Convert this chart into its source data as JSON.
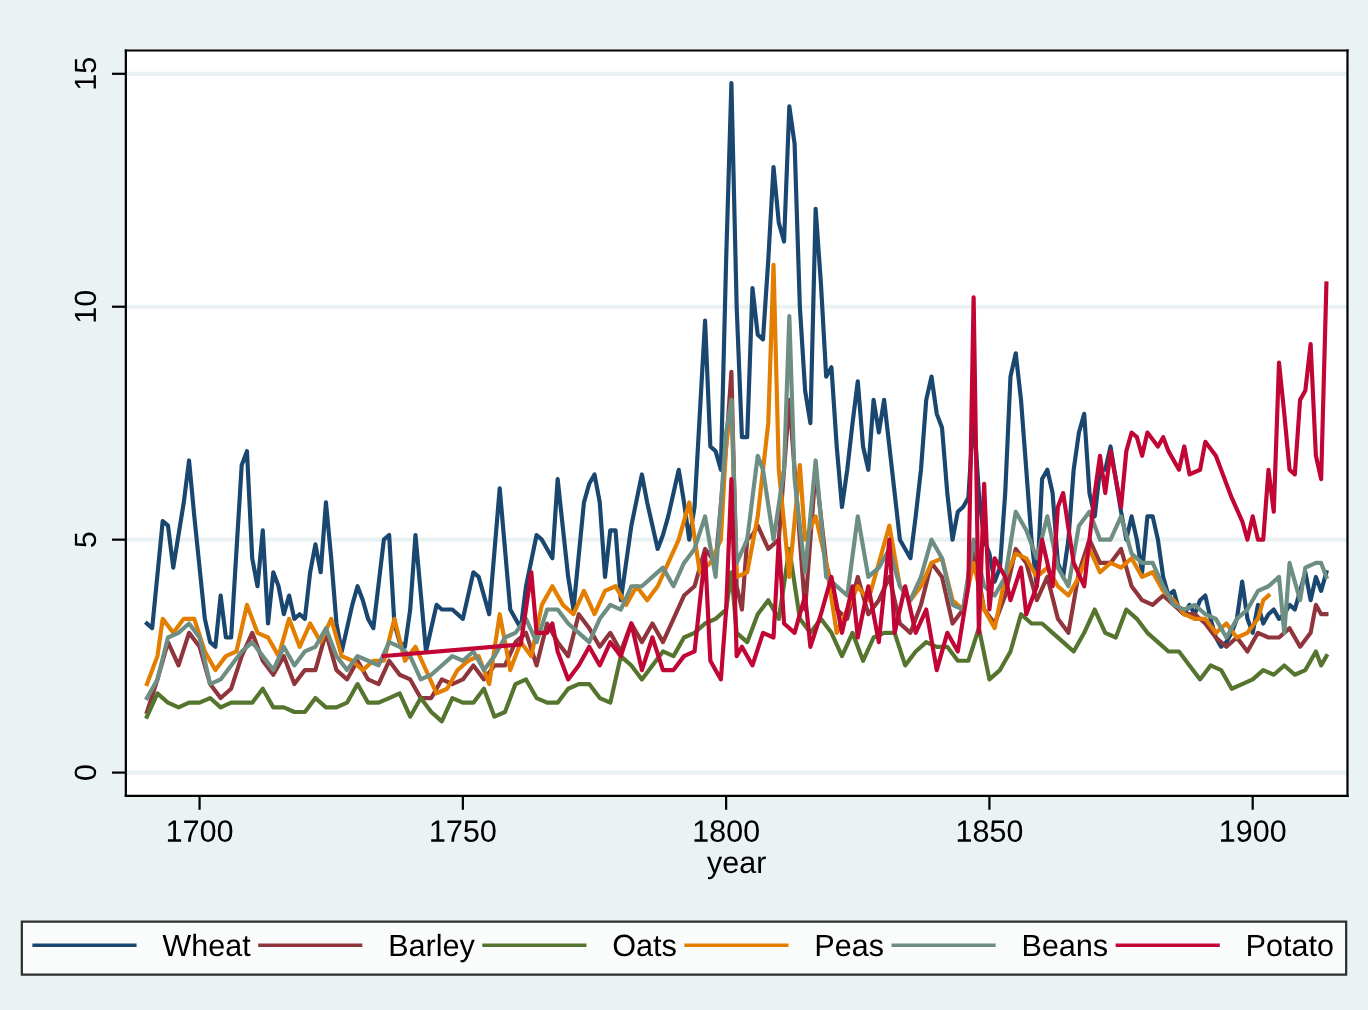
{
  "chart_data": {
    "type": "line",
    "xlabel": "year",
    "xlim": [
      1686,
      1918
    ],
    "xticks": [
      1700,
      1750,
      1800,
      1850,
      1900
    ],
    "ylim": [
      -0.5,
      15.5
    ],
    "yticks": [
      0,
      5,
      10,
      15
    ],
    "grid": "y",
    "legend": "bottom",
    "marker": "none",
    "line_style": "solid",
    "series": [
      {
        "name": "Wheat",
        "color": "#1a476f",
        "x": [
          1690,
          1691,
          1693,
          1694,
          1695,
          1697,
          1698,
          1699,
          1701,
          1702,
          1703,
          1704,
          1705,
          1706,
          1708,
          1709,
          1710,
          1711,
          1712,
          1713,
          1714,
          1715,
          1716,
          1717,
          1718,
          1719,
          1720,
          1721,
          1722,
          1723,
          1724,
          1725,
          1726,
          1727,
          1729,
          1730,
          1731,
          1732,
          1733,
          1735,
          1736,
          1737,
          1738,
          1739,
          1740,
          1741,
          1743,
          1745,
          1746,
          1748,
          1750,
          1752,
          1753,
          1755,
          1757,
          1759,
          1761,
          1762,
          1764,
          1765,
          1767,
          1768,
          1770,
          1771,
          1773,
          1774,
          1775,
          1776,
          1777,
          1778,
          1779,
          1780,
          1782,
          1784,
          1785,
          1787,
          1788,
          1789,
          1791,
          1792,
          1793,
          1794,
          1796,
          1797,
          1798,
          1799,
          1800,
          1801,
          1802,
          1803,
          1804,
          1805,
          1806,
          1807,
          1808,
          1809,
          1810,
          1811,
          1812,
          1813,
          1814,
          1815,
          1816,
          1817,
          1818,
          1819,
          1820,
          1821,
          1822,
          1823,
          1824,
          1825,
          1826,
          1827,
          1828,
          1829,
          1830,
          1831,
          1832,
          1833,
          1835,
          1836,
          1837,
          1838,
          1839,
          1840,
          1841,
          1842,
          1843,
          1844,
          1845,
          1846,
          1847,
          1848,
          1849,
          1850,
          1851,
          1852,
          1853,
          1854,
          1855,
          1856,
          1857,
          1858,
          1859,
          1860,
          1861,
          1862,
          1863,
          1864,
          1865,
          1866,
          1867,
          1868,
          1869,
          1870,
          1871,
          1872,
          1873,
          1874,
          1875,
          1876,
          1877,
          1878,
          1879,
          1880,
          1881,
          1882,
          1883,
          1884,
          1885,
          1886,
          1887,
          1888,
          1889,
          1890,
          1891,
          1892,
          1893,
          1894,
          1895,
          1896,
          1897,
          1898,
          1899,
          1900,
          1901,
          1902,
          1903,
          1904,
          1905,
          1906,
          1907,
          1908,
          1909,
          1910,
          1911,
          1912,
          1913,
          1914
        ],
        "values": [
          3.2,
          3.1,
          5.4,
          5.3,
          4.4,
          5.8,
          6.7,
          5.5,
          3.3,
          2.8,
          2.7,
          3.8,
          2.9,
          2.9,
          6.6,
          6.9,
          4.6,
          4.0,
          5.2,
          3.2,
          4.3,
          4.0,
          3.4,
          3.8,
          3.3,
          3.4,
          3.3,
          4.3,
          4.9,
          4.3,
          5.8,
          4.6,
          3.2,
          2.6,
          3.6,
          4.0,
          3.7,
          3.3,
          3.1,
          5.0,
          5.1,
          3.2,
          2.8,
          2.7,
          3.5,
          5.1,
          2.6,
          3.6,
          3.5,
          3.5,
          3.3,
          4.3,
          4.2,
          3.4,
          6.1,
          3.5,
          3.1,
          4.0,
          5.1,
          5.0,
          4.6,
          6.3,
          4.2,
          3.5,
          5.8,
          6.2,
          6.4,
          5.8,
          4.2,
          5.2,
          5.2,
          3.7,
          5.3,
          6.4,
          5.8,
          4.8,
          5.1,
          5.5,
          6.5,
          5.8,
          5.0,
          5.7,
          9.7,
          7.0,
          6.9,
          6.5,
          11.0,
          14.8,
          10.0,
          7.2,
          7.2,
          10.4,
          9.4,
          9.3,
          11.0,
          13.0,
          11.8,
          11.4,
          14.3,
          13.5,
          10.0,
          8.2,
          7.5,
          12.1,
          10.5,
          8.5,
          8.7,
          7.0,
          5.7,
          6.5,
          7.5,
          8.4,
          7.0,
          6.5,
          8.0,
          7.3,
          8.0,
          7.0,
          6.0,
          5.0,
          4.6,
          5.5,
          6.5,
          8.0,
          8.5,
          7.7,
          7.4,
          6.0,
          5.0,
          5.6,
          5.7,
          5.9,
          7.7,
          6.0,
          5.0,
          4.7,
          4.1,
          4.4,
          6.0,
          8.5,
          9.0,
          8.0,
          6.5,
          5.0,
          4.0,
          6.3,
          6.5,
          6.0,
          4.5,
          4.2,
          5.0,
          6.5,
          7.3,
          7.7,
          6.0,
          5.5,
          6.5,
          6.5,
          7.0,
          6.3,
          5.6,
          5.0,
          5.5,
          5.0,
          4.3,
          5.5,
          5.5,
          5.0,
          4.2,
          3.8,
          3.9,
          3.5,
          3.4,
          3.6,
          3.4,
          3.7,
          3.8,
          3.3,
          2.9,
          2.7,
          2.8,
          3.0,
          3.3,
          4.1,
          3.3,
          3.0,
          3.6,
          3.2,
          3.4,
          3.5,
          3.3,
          3.4,
          3.6,
          3.5,
          3.9,
          4.3,
          3.7,
          4.2,
          3.9,
          4.3
        ]
      },
      {
        "name": "Barley",
        "color": "#90353b",
        "x": [
          1690,
          1692,
          1694,
          1696,
          1698,
          1700,
          1702,
          1704,
          1706,
          1708,
          1710,
          1712,
          1714,
          1716,
          1718,
          1720,
          1722,
          1724,
          1726,
          1728,
          1730,
          1732,
          1734,
          1736,
          1738,
          1740,
          1742,
          1744,
          1746,
          1748,
          1750,
          1752,
          1754,
          1756,
          1758,
          1760,
          1762,
          1764,
          1766,
          1768,
          1770,
          1772,
          1774,
          1776,
          1778,
          1780,
          1782,
          1784,
          1786,
          1788,
          1790,
          1792,
          1794,
          1796,
          1798,
          1800,
          1801,
          1802,
          1803,
          1804,
          1805,
          1806,
          1808,
          1810,
          1812,
          1813,
          1815,
          1817,
          1819,
          1821,
          1823,
          1825,
          1827,
          1829,
          1831,
          1833,
          1835,
          1837,
          1839,
          1841,
          1843,
          1845,
          1847,
          1849,
          1851,
          1853,
          1855,
          1857,
          1859,
          1861,
          1863,
          1865,
          1867,
          1869,
          1871,
          1873,
          1875,
          1877,
          1879,
          1881,
          1883,
          1885,
          1887,
          1889,
          1891,
          1893,
          1895,
          1897,
          1899,
          1901,
          1903,
          1905,
          1907,
          1909,
          1911,
          1912,
          1913,
          1914
        ],
        "values": [
          1.3,
          2.0,
          2.8,
          2.3,
          3.0,
          2.7,
          1.9,
          1.6,
          1.8,
          2.5,
          3.0,
          2.4,
          2.1,
          2.5,
          1.9,
          2.2,
          2.2,
          3.0,
          2.2,
          2.0,
          2.4,
          2.0,
          1.9,
          2.4,
          2.1,
          2.0,
          1.6,
          1.6,
          2.0,
          1.9,
          2.0,
          2.3,
          2.0,
          2.3,
          2.3,
          2.8,
          3.0,
          2.3,
          3.2,
          2.8,
          2.5,
          3.4,
          3.1,
          2.7,
          3.0,
          2.6,
          3.2,
          2.8,
          3.2,
          2.8,
          3.3,
          3.8,
          4.0,
          4.8,
          4.5,
          7.0,
          8.6,
          4.0,
          3.5,
          5.0,
          5.1,
          5.3,
          4.8,
          5.0,
          8.0,
          6.5,
          3.5,
          6.5,
          4.5,
          3.5,
          3.3,
          4.2,
          3.4,
          3.7,
          4.2,
          3.2,
          3.0,
          3.6,
          4.5,
          4.2,
          3.2,
          3.5,
          4.8,
          3.5,
          3.2,
          3.8,
          4.8,
          4.5,
          3.7,
          4.2,
          3.3,
          3.0,
          4.3,
          5.0,
          4.5,
          4.5,
          4.8,
          4.0,
          3.7,
          3.6,
          3.8,
          3.6,
          3.4,
          3.4,
          3.2,
          2.9,
          2.7,
          2.9,
          2.6,
          3.0,
          2.9,
          2.9,
          3.1,
          2.7,
          3.0,
          3.6,
          3.4,
          3.4
        ]
      },
      {
        "name": "Oats",
        "color": "#55752f",
        "x": [
          1690,
          1692,
          1694,
          1696,
          1698,
          1700,
          1702,
          1704,
          1706,
          1708,
          1710,
          1712,
          1714,
          1716,
          1718,
          1720,
          1722,
          1724,
          1726,
          1728,
          1730,
          1732,
          1734,
          1736,
          1738,
          1740,
          1742,
          1744,
          1746,
          1748,
          1750,
          1752,
          1754,
          1756,
          1758,
          1760,
          1762,
          1764,
          1766,
          1768,
          1770,
          1772,
          1774,
          1776,
          1778,
          1780,
          1782,
          1784,
          1786,
          1788,
          1790,
          1792,
          1794,
          1796,
          1798,
          1800,
          1801,
          1802,
          1804,
          1806,
          1808,
          1810,
          1812,
          1814,
          1816,
          1818,
          1820,
          1822,
          1824,
          1826,
          1828,
          1830,
          1832,
          1834,
          1836,
          1838,
          1840,
          1842,
          1844,
          1846,
          1848,
          1850,
          1852,
          1854,
          1856,
          1858,
          1860,
          1862,
          1864,
          1866,
          1868,
          1870,
          1872,
          1874,
          1876,
          1878,
          1880,
          1882,
          1884,
          1886,
          1888,
          1890,
          1892,
          1894,
          1896,
          1898,
          1900,
          1902,
          1904,
          1906,
          1908,
          1910,
          1912,
          1913,
          1914
        ],
        "values": [
          1.2,
          1.7,
          1.5,
          1.4,
          1.5,
          1.5,
          1.6,
          1.4,
          1.5,
          1.5,
          1.5,
          1.8,
          1.4,
          1.4,
          1.3,
          1.3,
          1.6,
          1.4,
          1.4,
          1.5,
          1.9,
          1.5,
          1.5,
          1.6,
          1.7,
          1.2,
          1.6,
          1.3,
          1.1,
          1.6,
          1.5,
          1.5,
          1.8,
          1.2,
          1.3,
          1.9,
          2.0,
          1.6,
          1.5,
          1.5,
          1.8,
          1.9,
          1.9,
          1.6,
          1.5,
          2.5,
          2.3,
          2.0,
          2.3,
          2.6,
          2.5,
          2.9,
          3.0,
          3.2,
          3.3,
          3.5,
          4.3,
          3.0,
          2.8,
          3.4,
          3.7,
          3.3,
          4.8,
          3.3,
          3.0,
          3.3,
          3.0,
          2.5,
          3.0,
          2.4,
          2.9,
          3.0,
          3.0,
          2.3,
          2.6,
          2.8,
          2.7,
          2.7,
          2.4,
          2.4,
          3.1,
          2.0,
          2.2,
          2.6,
          3.4,
          3.2,
          3.2,
          3.0,
          2.8,
          2.6,
          3.0,
          3.5,
          3.0,
          2.9,
          3.5,
          3.3,
          3.0,
          2.8,
          2.6,
          2.6,
          2.3,
          2.0,
          2.3,
          2.2,
          1.8,
          1.9,
          2.0,
          2.2,
          2.1,
          2.3,
          2.1,
          2.2,
          2.6,
          2.3,
          2.5
        ]
      },
      {
        "name": "Peas",
        "color": "#e37e00",
        "x": [
          1690,
          1692,
          1693,
          1695,
          1697,
          1699,
          1701,
          1703,
          1705,
          1707,
          1709,
          1711,
          1713,
          1715,
          1717,
          1719,
          1721,
          1723,
          1725,
          1727,
          1729,
          1731,
          1733,
          1735,
          1737,
          1739,
          1741,
          1743,
          1745,
          1747,
          1749,
          1751,
          1753,
          1755,
          1757,
          1759,
          1761,
          1763,
          1765,
          1767,
          1769,
          1771,
          1773,
          1775,
          1777,
          1779,
          1781,
          1783,
          1785,
          1787,
          1789,
          1791,
          1793,
          1795,
          1797,
          1799,
          1800,
          1801,
          1802,
          1804,
          1806,
          1808,
          1809,
          1810,
          1812,
          1814,
          1815,
          1817,
          1819,
          1821,
          1823,
          1825,
          1827,
          1829,
          1831,
          1833,
          1835,
          1837,
          1839,
          1841,
          1843,
          1845,
          1847,
          1849,
          1851,
          1853,
          1855,
          1857,
          1859,
          1861,
          1863,
          1865,
          1867,
          1869,
          1871,
          1873,
          1875,
          1877,
          1879,
          1881,
          1883,
          1885,
          1887,
          1889,
          1891,
          1893,
          1895,
          1897,
          1899,
          1901,
          1902,
          1903
        ],
        "values": [
          1.9,
          2.5,
          3.3,
          3.0,
          3.3,
          3.3,
          2.6,
          2.2,
          2.5,
          2.6,
          3.6,
          3.0,
          2.9,
          2.5,
          3.3,
          2.7,
          3.2,
          2.8,
          3.3,
          2.5,
          2.4,
          2.2,
          2.4,
          2.4,
          3.3,
          2.4,
          2.7,
          2.2,
          1.7,
          1.8,
          2.2,
          2.4,
          2.5,
          1.9,
          3.4,
          2.2,
          2.8,
          2.5,
          3.6,
          4.0,
          3.6,
          3.4,
          3.9,
          3.4,
          3.9,
          4.0,
          3.6,
          4.0,
          3.7,
          4.0,
          4.5,
          5.0,
          5.8,
          4.3,
          4.5,
          5.0,
          7.0,
          8.0,
          4.2,
          4.3,
          5.5,
          7.5,
          10.9,
          6.5,
          4.2,
          6.6,
          5.0,
          5.5,
          4.5,
          3.0,
          3.5,
          4.0,
          3.7,
          4.5,
          5.3,
          4.0,
          3.7,
          4.0,
          4.5,
          4.6,
          3.7,
          3.5,
          4.5,
          3.5,
          3.1,
          4.2,
          4.7,
          4.6,
          4.2,
          4.4,
          4.0,
          3.8,
          4.2,
          4.8,
          4.3,
          4.5,
          4.4,
          4.6,
          4.2,
          4.3,
          3.9,
          3.7,
          3.4,
          3.3,
          3.3,
          3.0,
          3.2,
          2.9,
          3.0,
          3.3,
          3.7,
          3.8
        ]
      },
      {
        "name": "Beans",
        "color": "#6e8e84",
        "x": [
          1690,
          1692,
          1694,
          1696,
          1698,
          1700,
          1702,
          1704,
          1706,
          1708,
          1710,
          1712,
          1714,
          1716,
          1718,
          1720,
          1722,
          1724,
          1726,
          1728,
          1730,
          1732,
          1734,
          1736,
          1738,
          1740,
          1742,
          1744,
          1746,
          1748,
          1750,
          1752,
          1754,
          1756,
          1758,
          1760,
          1762,
          1764,
          1766,
          1768,
          1770,
          1772,
          1774,
          1776,
          1778,
          1780,
          1782,
          1784,
          1786,
          1788,
          1790,
          1792,
          1794,
          1796,
          1798,
          1800,
          1801,
          1802,
          1804,
          1806,
          1807,
          1809,
          1811,
          1812,
          1813,
          1815,
          1817,
          1819,
          1821,
          1823,
          1825,
          1827,
          1829,
          1831,
          1833,
          1835,
          1837,
          1839,
          1841,
          1843,
          1845,
          1847,
          1849,
          1851,
          1853,
          1855,
          1857,
          1859,
          1861,
          1863,
          1865,
          1867,
          1869,
          1871,
          1873,
          1875,
          1877,
          1879,
          1881,
          1883,
          1885,
          1887,
          1889,
          1891,
          1893,
          1895,
          1897,
          1899,
          1901,
          1903,
          1905,
          1906,
          1907,
          1909,
          1910,
          1912,
          1913,
          1914
        ],
        "values": [
          1.6,
          2.0,
          2.9,
          3.0,
          3.2,
          2.9,
          1.9,
          2.0,
          2.3,
          2.6,
          2.8,
          2.5,
          2.2,
          2.7,
          2.3,
          2.6,
          2.7,
          3.1,
          2.5,
          2.2,
          2.5,
          2.4,
          2.3,
          2.8,
          2.7,
          2.5,
          2.0,
          2.1,
          2.3,
          2.5,
          2.4,
          2.6,
          2.2,
          2.5,
          2.9,
          3.0,
          3.3,
          2.8,
          3.5,
          3.5,
          3.2,
          3.0,
          2.8,
          3.3,
          3.6,
          3.5,
          4.0,
          4.0,
          4.2,
          4.4,
          4.0,
          4.5,
          4.8,
          5.5,
          4.2,
          7.3,
          8.0,
          4.5,
          5.0,
          6.8,
          6.5,
          5.0,
          6.5,
          9.8,
          6.3,
          4.3,
          6.7,
          4.2,
          4.0,
          3.8,
          5.5,
          4.2,
          4.4,
          4.8,
          4.0,
          3.7,
          4.2,
          5.0,
          4.6,
          3.6,
          3.5,
          5.0,
          4.0,
          3.8,
          4.2,
          5.6,
          5.2,
          4.6,
          5.5,
          4.4,
          4.0,
          5.3,
          5.6,
          5.0,
          5.0,
          5.5,
          4.7,
          4.5,
          4.5,
          4.0,
          3.6,
          3.5,
          3.6,
          3.4,
          3.3,
          2.9,
          3.3,
          3.5,
          3.9,
          4.0,
          4.2,
          3.0,
          4.5,
          3.7,
          4.4,
          4.5,
          4.5,
          4.2
        ]
      },
      {
        "name": "Potato",
        "color": "#c10534",
        "x": [
          1735,
          1761,
          1763,
          1764,
          1766,
          1767,
          1768,
          1770,
          1772,
          1774,
          1776,
          1778,
          1780,
          1782,
          1784,
          1786,
          1788,
          1790,
          1792,
          1794,
          1796,
          1797,
          1799,
          1800,
          1801,
          1802,
          1803,
          1805,
          1807,
          1809,
          1810,
          1811,
          1813,
          1815,
          1816,
          1818,
          1820,
          1822,
          1824,
          1825,
          1827,
          1829,
          1831,
          1832,
          1834,
          1836,
          1838,
          1840,
          1842,
          1844,
          1846,
          1847,
          1848,
          1849,
          1850,
          1851,
          1853,
          1854,
          1856,
          1857,
          1859,
          1860,
          1862,
          1863,
          1864,
          1866,
          1868,
          1870,
          1871,
          1872,
          1873,
          1875,
          1876,
          1877,
          1878,
          1879,
          1880,
          1882,
          1883,
          1884,
          1886,
          1887,
          1888,
          1890,
          1891,
          1893,
          1894,
          1896,
          1898,
          1899,
          1900,
          1901,
          1902,
          1903,
          1904,
          1905,
          1906,
          1907,
          1908,
          1909,
          1910,
          1911,
          1912,
          1913,
          1914
        ],
        "values": [
          2.5,
          2.75,
          4.3,
          3.0,
          3.0,
          3.2,
          2.6,
          2.0,
          2.3,
          2.7,
          2.3,
          2.8,
          2.5,
          3.2,
          2.2,
          2.9,
          2.2,
          2.2,
          2.5,
          2.6,
          4.7,
          2.4,
          2.0,
          3.5,
          6.3,
          2.5,
          2.7,
          2.3,
          3.0,
          2.9,
          5.0,
          3.2,
          3.0,
          3.8,
          2.7,
          3.4,
          4.2,
          3.0,
          4.0,
          2.9,
          4.0,
          2.8,
          5.0,
          3.0,
          4.0,
          3.0,
          3.5,
          2.2,
          3.0,
          2.6,
          4.0,
          10.2,
          3.0,
          6.2,
          3.5,
          4.6,
          4.2,
          3.7,
          4.4,
          3.4,
          4.0,
          5.0,
          4.0,
          5.7,
          6.0,
          4.5,
          4.0,
          6.0,
          6.8,
          6.0,
          6.9,
          5.7,
          6.9,
          7.3,
          7.2,
          6.8,
          7.3,
          7.0,
          7.2,
          6.9,
          6.5,
          7.0,
          6.4,
          6.5,
          7.1,
          6.8,
          6.5,
          5.9,
          5.4,
          5.0,
          5.5,
          5.0,
          5.0,
          6.5,
          5.6,
          8.8,
          7.7,
          6.5,
          6.4,
          8.0,
          8.2,
          9.2,
          6.8,
          6.3,
          10.5
        ]
      }
    ]
  }
}
